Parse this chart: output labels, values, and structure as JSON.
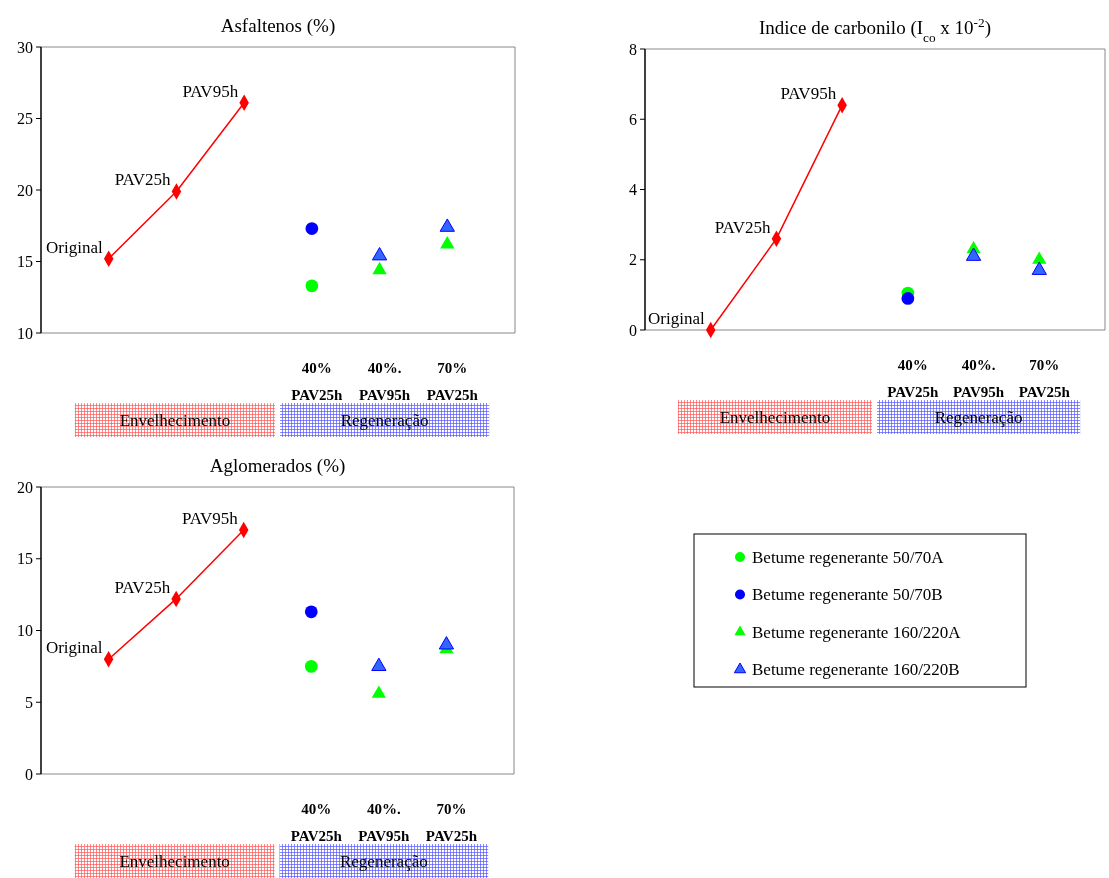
{
  "chart_data": [
    {
      "type": "scatter",
      "title": "Asfaltenos (%)",
      "categories": [
        null,
        null,
        null,
        null,
        "40% PAV25h",
        "40%. PAV95h",
        "70% PAV25h",
        null
      ],
      "ylim": [
        10,
        30
      ],
      "yticks": [
        10,
        15,
        20,
        25,
        30
      ],
      "grid": false,
      "legend": false,
      "series": [
        {
          "type": "line",
          "color": "#ff0000",
          "marker": "diamond",
          "values": [
            null,
            15.2,
            19.9,
            26.1,
            null,
            null,
            null,
            null
          ]
        },
        {
          "color": "#00ff00",
          "marker": "circle",
          "values": [
            null,
            null,
            null,
            null,
            13.3,
            null,
            null,
            null
          ]
        },
        {
          "color": "#0000ff",
          "marker": "circle",
          "values": [
            null,
            null,
            null,
            null,
            17.3,
            null,
            null,
            null
          ]
        },
        {
          "color": "#00ff00",
          "marker": "triangle",
          "values": [
            null,
            null,
            null,
            null,
            null,
            14.4,
            16.2,
            null
          ]
        },
        {
          "color": "#3366ff",
          "marker": "triangle",
          "values": [
            null,
            null,
            null,
            null,
            null,
            15.4,
            17.4,
            null
          ]
        }
      ],
      "annotations": [
        "Original",
        "PAV25h",
        "PAV95h",
        "Envelhecimento",
        "Regeneração"
      ]
    },
    {
      "type": "scatter",
      "title": "Indice de carbonilo (I$_{co}$ x 10$^{-2}$)",
      "categories": [
        null,
        null,
        null,
        null,
        "40% PAV25h",
        "40%. PAV95h",
        "70% PAV25h",
        null
      ],
      "ylim": [
        0,
        8
      ],
      "yticks": [
        0,
        2,
        4,
        6,
        8
      ],
      "grid": false,
      "legend": false,
      "series": [
        {
          "type": "line",
          "color": "#ff0000",
          "marker": "diamond",
          "values": [
            null,
            0,
            2.6,
            6.4,
            null,
            null,
            null,
            null
          ]
        },
        {
          "color": "#00ff00",
          "marker": "circle",
          "values": [
            null,
            null,
            null,
            null,
            1.05,
            null,
            null,
            null
          ]
        },
        {
          "color": "#0000ff",
          "marker": "circle",
          "values": [
            null,
            null,
            null,
            null,
            0.9,
            null,
            null,
            null
          ]
        },
        {
          "color": "#00ff00",
          "marker": "triangle",
          "values": [
            null,
            null,
            null,
            null,
            null,
            2.3,
            2.0,
            null
          ]
        },
        {
          "color": "#3366ff",
          "marker": "triangle",
          "values": [
            null,
            null,
            null,
            null,
            null,
            2.1,
            1.7,
            null
          ]
        }
      ],
      "annotations": [
        "Original",
        "PAV25h",
        "PAV95h",
        "Envelhecimento",
        "Regeneração"
      ]
    },
    {
      "type": "scatter",
      "title": "Aglomerados (%)",
      "categories": [
        null,
        null,
        null,
        null,
        "40% PAV25h",
        "40%. PAV95h",
        "70% PAV25h",
        null
      ],
      "ylim": [
        0,
        20
      ],
      "yticks": [
        0,
        5,
        10,
        15,
        20
      ],
      "grid": false,
      "legend": "right",
      "series": [
        {
          "type": "line",
          "color": "#ff0000",
          "marker": "diamond",
          "values": [
            null,
            8.0,
            12.2,
            17.0,
            null,
            null,
            null,
            null
          ]
        },
        {
          "name": "Betume regenerante 50/70A",
          "color": "#00ff00",
          "marker": "circle",
          "values": [
            null,
            null,
            null,
            null,
            7.5,
            null,
            null,
            null
          ]
        },
        {
          "name": "Betume regenerante 50/70B",
          "color": "#0000ff",
          "marker": "circle",
          "values": [
            null,
            null,
            null,
            null,
            11.3,
            null,
            null,
            null
          ]
        },
        {
          "name": "Betume regenerante 160/220A",
          "color": "#00ff00",
          "marker": "triangle",
          "values": [
            null,
            null,
            null,
            null,
            null,
            5.6,
            8.7,
            null
          ]
        },
        {
          "name": "Betume regenerante 160/220B",
          "color": "#3366ff",
          "marker": "triangle",
          "values": [
            null,
            null,
            null,
            null,
            null,
            7.5,
            9.0,
            null
          ]
        }
      ],
      "annotations": [
        "Original",
        "PAV25h",
        "PAV95h",
        "Envelhecimento",
        "Regeneração"
      ]
    }
  ]
}
